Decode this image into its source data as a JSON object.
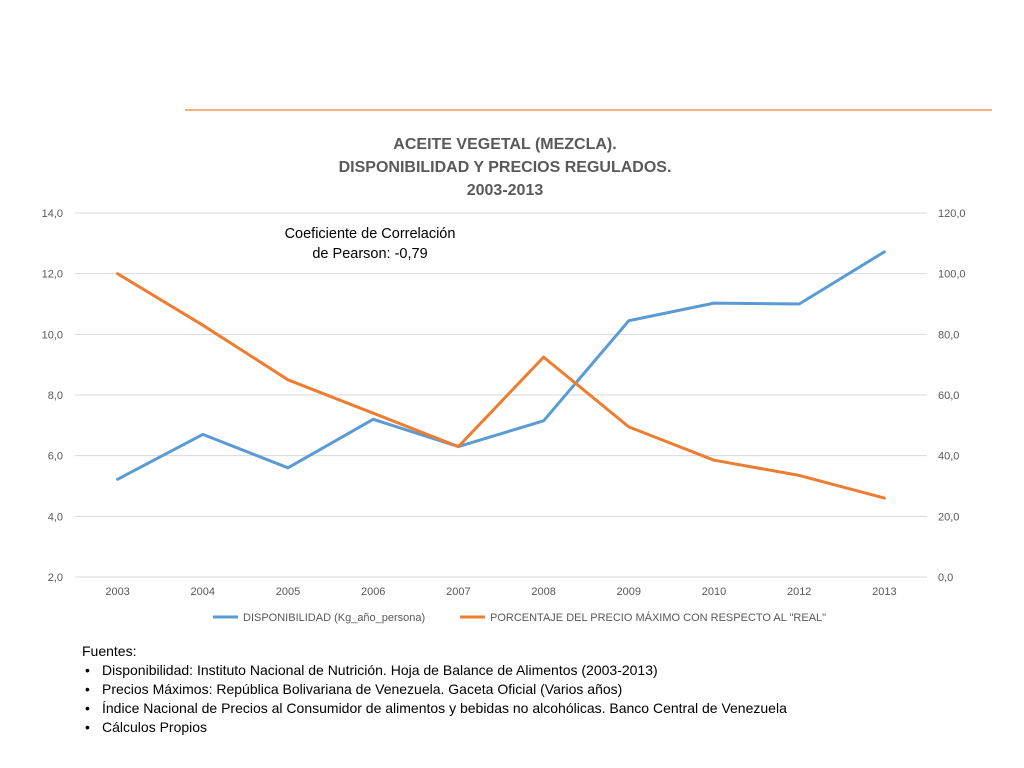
{
  "chart_data": {
    "type": "line",
    "title_lines": [
      "ACEITE VEGETAL (MEZCLA).",
      "DISPONIBILIDAD Y PRECIOS REGULADOS.",
      "2003-2013"
    ],
    "categories": [
      "2003",
      "2004",
      "2005",
      "2006",
      "2007",
      "2008",
      "2009",
      "2010",
      "2012",
      "2013"
    ],
    "series": [
      {
        "name": "DISPONIBILIDAD (Kg_año_persona)",
        "axis": "left",
        "color": "#5B9BD5",
        "values": [
          5.22,
          6.7,
          5.6,
          7.2,
          6.3,
          7.15,
          10.45,
          11.03,
          11.0,
          12.72
        ]
      },
      {
        "name": "PORCENTAJE DEL PRECIO MÁXIMO CON RESPECTO AL \"REAL\"",
        "axis": "right",
        "color": "#ED7D31",
        "values": [
          100.0,
          83.0,
          65.0,
          54.0,
          43.0,
          72.5,
          49.5,
          38.5,
          33.5,
          26.0
        ]
      }
    ],
    "y_left": {
      "min": 2.0,
      "max": 14.0,
      "ticks": [
        "2,0",
        "4,0",
        "6,0",
        "8,0",
        "10,0",
        "12,0",
        "14,0"
      ]
    },
    "y_right": {
      "min": 0.0,
      "max": 120.0,
      "ticks": [
        "0,0",
        "20,0",
        "40,0",
        "60,0",
        "80,0",
        "100,0",
        "120,0"
      ]
    },
    "grid": true,
    "legend_position": "bottom",
    "annotation_lines": [
      "Coeficiente de Correlación",
      "de Pearson: -0,79"
    ]
  },
  "sources": {
    "heading": "Fuentes:",
    "items": [
      "Disponibilidad: Instituto Nacional de Nutrición. Hoja de Balance de Alimentos (2003-2013)",
      "Precios Máximos: República Bolivariana de Venezuela. Gaceta Oficial (Varios años)",
      "Índice Nacional de Precios al Consumidor de alimentos y bebidas no alcohólicas. Banco Central de Venezuela",
      "Cálculos Propios"
    ]
  },
  "colors": {
    "accent_rule": "#F4B183",
    "grid": "#D9D9D9",
    "text_gray": "#595959"
  }
}
